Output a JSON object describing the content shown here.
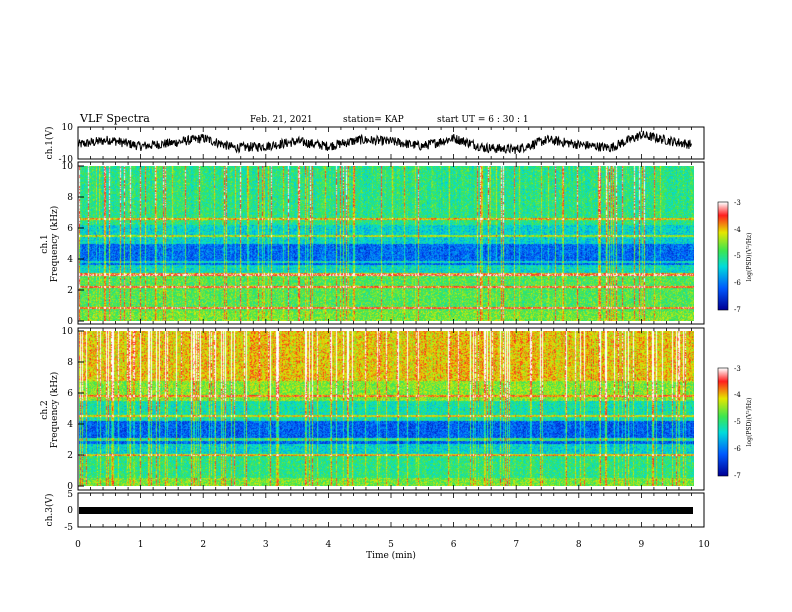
{
  "chart_data": [
    {
      "type": "line",
      "panel": "ch1-waveform",
      "ylabel": "ch.1(V)",
      "ylim": [
        -10,
        10
      ],
      "y_ticks": [
        "10",
        "-10"
      ],
      "x": "Time (min)",
      "xlim": [
        0,
        10
      ],
      "approx_waveform": {
        "x": [
          0,
          0.5,
          1,
          1.5,
          2,
          2.5,
          3,
          3.5,
          4,
          4.5,
          5,
          5.5,
          6,
          6.5,
          7,
          7.5,
          8,
          8.5,
          9,
          9.5,
          9.8
        ],
        "y": [
          -1,
          2,
          -2,
          0,
          3,
          -3,
          -2,
          1,
          -2,
          2,
          1,
          -2,
          3,
          -3,
          -4,
          2,
          -1,
          -3,
          5,
          1,
          -1
        ]
      }
    },
    {
      "type": "heatmap",
      "panel": "ch1-spectrogram",
      "ylabel": "ch.1\nFrequency (kHz)",
      "ylim": [
        0,
        10
      ],
      "y_ticks": [
        "0",
        "2",
        "4",
        "6",
        "8",
        "10"
      ],
      "xlim": [
        0,
        10
      ],
      "colorbar": {
        "label": "log(PSD)(V²/Hz)",
        "range": [
          -7,
          -3
        ],
        "ticks": [
          "-3",
          "-4",
          "-5",
          "-6",
          "-7"
        ]
      }
    },
    {
      "type": "heatmap",
      "panel": "ch2-spectrogram",
      "ylabel": "ch.2\nFrequency (kHz)",
      "ylim": [
        0,
        10
      ],
      "y_ticks": [
        "0",
        "2",
        "4",
        "6",
        "8",
        "10"
      ],
      "xlim": [
        0,
        10
      ],
      "colorbar": {
        "label": "log(PSD)(V²/Hz)",
        "range": [
          -7,
          -3
        ],
        "ticks": [
          "-3",
          "-4",
          "-5",
          "-6",
          "-7"
        ]
      }
    },
    {
      "type": "line",
      "panel": "ch3-waveform",
      "ylabel": "ch.3(V)",
      "ylim": [
        -5,
        5
      ],
      "y_ticks": [
        "5",
        "0",
        "-5"
      ],
      "xlabel": "Time (min)",
      "xlim": [
        0,
        10
      ],
      "x_ticks": [
        "0",
        "1",
        "2",
        "3",
        "4",
        "5",
        "6",
        "7",
        "8",
        "9",
        "10"
      ],
      "approx_waveform": {
        "x": [
          0,
          9.8
        ],
        "y": [
          -1,
          -1
        ]
      }
    }
  ],
  "header": {
    "title": "VLF Spectra",
    "date": "Feb. 21, 2021",
    "station": "station= KAP",
    "start": "start UT = 6 : 30 : 1"
  },
  "labels": {
    "ch1_v": "ch.1(V)",
    "ch2_freq_a": "ch.2",
    "ch2_freq_b": "Frequency (kHz)",
    "ch1_freq_a": "ch.1",
    "ch1_freq_b": "Frequency (kHz)",
    "ch3_v": "ch.3(V)",
    "xlabel": "Time (min)",
    "cb_label": "log(PSD)(V²/Hz)"
  },
  "colors": {
    "low": "#0000a0",
    "mid_low": "#0080ff",
    "mid": "#40e060",
    "mid_high": "#e0e000",
    "high": "#ff2020",
    "top": "#ffffff"
  }
}
